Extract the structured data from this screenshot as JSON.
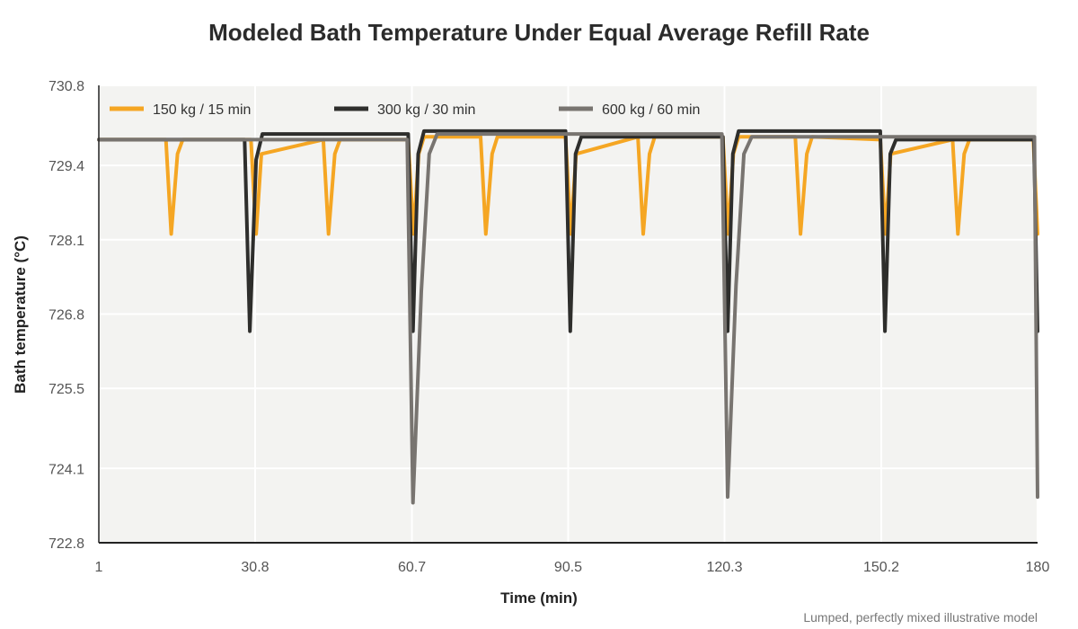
{
  "chart_data": {
    "type": "line",
    "title": "Modeled Bath Temperature Under Equal Average Refill Rate",
    "xlabel": "Time (min)",
    "ylabel": "Bath temperature (°C)",
    "footnote": "Lumped, perfectly mixed illustrative model",
    "xlim": [
      1,
      180
    ],
    "ylim": [
      722.8,
      730.8
    ],
    "x_ticks": [
      "1",
      "30.8",
      "60.7",
      "90.5",
      "120.3",
      "150.2",
      "180"
    ],
    "y_ticks": [
      "722.8",
      "724.1",
      "725.5",
      "726.8",
      "728.1",
      "729.4",
      "730.8"
    ],
    "grid": true,
    "legend_position": "top-left, horizontal",
    "series": [
      {
        "name": "150 kg / 15 min",
        "color": "#F5A623",
        "x": [
          1,
          13.8,
          14.8,
          16,
          17,
          30,
          31,
          32,
          43.8,
          44.8,
          46,
          47,
          60,
          61,
          62,
          63,
          73.8,
          74.8,
          76,
          77,
          90,
          91,
          92,
          103.8,
          104.8,
          106,
          107,
          120,
          121,
          122,
          123,
          133.8,
          134.8,
          136,
          137,
          150,
          151,
          152,
          163.8,
          164.8,
          166,
          167,
          179.2,
          180
        ],
        "y": [
          729.85,
          729.85,
          728.2,
          729.6,
          729.85,
          729.85,
          728.2,
          729.6,
          729.85,
          728.2,
          729.6,
          729.85,
          729.85,
          728.2,
          729.6,
          729.9,
          729.9,
          728.2,
          729.6,
          729.9,
          729.9,
          728.2,
          729.6,
          729.9,
          728.2,
          729.6,
          729.9,
          729.9,
          728.2,
          729.6,
          729.9,
          729.9,
          728.2,
          729.6,
          729.9,
          729.85,
          728.2,
          729.6,
          729.85,
          728.2,
          729.6,
          729.85,
          729.85,
          728.2
        ]
      },
      {
        "name": "300 kg / 30 min",
        "color": "#2E2E2C",
        "x": [
          1,
          28.8,
          29.8,
          31,
          32.2,
          60,
          60.9,
          61.9,
          63,
          90,
          90.9,
          91.9,
          93,
          120,
          120.9,
          121.9,
          123,
          150,
          150.9,
          151.9,
          153,
          179.3,
          180
        ],
        "y": [
          729.85,
          729.85,
          726.5,
          729.5,
          729.95,
          729.95,
          726.5,
          729.6,
          730.0,
          730.0,
          726.5,
          729.6,
          729.9,
          729.9,
          726.5,
          729.6,
          730.0,
          730.0,
          726.5,
          729.6,
          729.85,
          729.85,
          726.5
        ]
      },
      {
        "name": "600 kg / 60 min",
        "color": "#787470",
        "x": [
          1,
          59.8,
          60.9,
          62.5,
          64,
          65.5,
          119.8,
          120.9,
          122.5,
          124,
          125.5,
          179.4,
          180
        ],
        "y": [
          729.85,
          729.85,
          723.5,
          727.2,
          729.6,
          729.95,
          729.95,
          723.6,
          727.3,
          729.6,
          729.9,
          729.9,
          723.6
        ]
      }
    ]
  }
}
